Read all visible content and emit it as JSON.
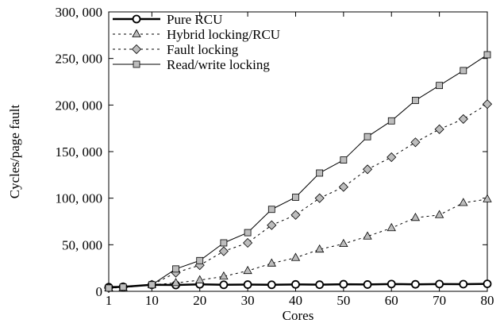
{
  "chart_data": {
    "type": "line",
    "title": "",
    "xlabel": "Cores",
    "ylabel": "Cycles/page fault",
    "xlim": [
      1,
      80
    ],
    "ylim": [
      0,
      300000
    ],
    "x_ticks": [
      1,
      10,
      20,
      30,
      40,
      50,
      60,
      70,
      80
    ],
    "x_tick_labels": [
      "1",
      "10",
      "20",
      "30",
      "40",
      "50",
      "60",
      "70",
      "80"
    ],
    "y_ticks": [
      0,
      50000,
      100000,
      150000,
      200000,
      250000,
      300000
    ],
    "y_tick_labels": [
      "0",
      "50, 000",
      "100, 000",
      "150, 000",
      "200, 000",
      "250, 000",
      "300, 000"
    ],
    "grid": false,
    "legend_position": "top-left",
    "series": [
      {
        "name": "Pure RCU",
        "marker": "circle",
        "line": "solid",
        "line_width": 2.5,
        "marker_fill": "#ffffff",
        "x": [
          1,
          4,
          10,
          15,
          20,
          25,
          30,
          35,
          40,
          45,
          50,
          55,
          60,
          65,
          70,
          75,
          80
        ],
        "values": [
          4500,
          4800,
          7000,
          6800,
          7500,
          7000,
          7200,
          7000,
          7400,
          7100,
          7600,
          7300,
          7800,
          7500,
          7800,
          7700,
          8000
        ]
      },
      {
        "name": "Hybrid locking/RCU",
        "marker": "triangle",
        "line": "dotted",
        "line_width": 1,
        "marker_fill": "#bdbdbd",
        "x": [
          1,
          4,
          10,
          15,
          20,
          25,
          30,
          35,
          40,
          45,
          50,
          55,
          60,
          65,
          70,
          75,
          80
        ],
        "values": [
          3500,
          4000,
          7000,
          9000,
          12000,
          16000,
          22000,
          30000,
          36000,
          45000,
          51000,
          59000,
          68000,
          79000,
          82000,
          95000,
          99000
        ]
      },
      {
        "name": "Fault locking",
        "marker": "diamond",
        "line": "dotted",
        "line_width": 1,
        "marker_fill": "#bdbdbd",
        "x": [
          1,
          4,
          10,
          15,
          20,
          25,
          30,
          35,
          40,
          45,
          50,
          55,
          60,
          65,
          70,
          75,
          80
        ],
        "values": [
          3500,
          4500,
          7000,
          20000,
          28000,
          43000,
          52000,
          71000,
          82000,
          100000,
          112000,
          131000,
          144000,
          160000,
          174000,
          185000,
          201000
        ]
      },
      {
        "name": "Read/write locking",
        "marker": "square",
        "line": "solid",
        "line_width": 1,
        "marker_fill": "#bdbdbd",
        "x": [
          1,
          4,
          10,
          15,
          20,
          25,
          30,
          35,
          40,
          45,
          50,
          55,
          60,
          65,
          70,
          75,
          80
        ],
        "values": [
          3500,
          4500,
          7000,
          24000,
          33000,
          52000,
          63000,
          88000,
          101000,
          127000,
          141000,
          166000,
          183000,
          205000,
          221000,
          237000,
          254000
        ]
      }
    ]
  }
}
